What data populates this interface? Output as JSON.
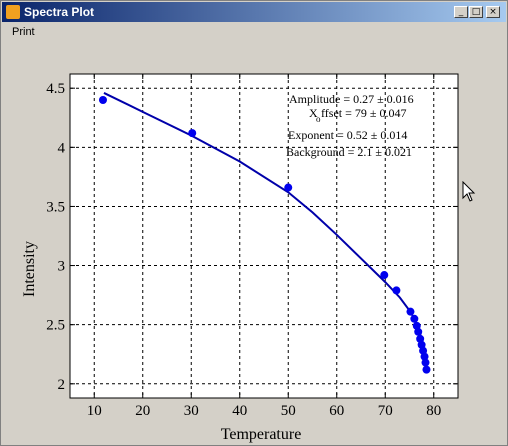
{
  "window": {
    "title": "Spectra Plot",
    "minimize_glyph": "_",
    "maximize_glyph": "□",
    "close_glyph": "×"
  },
  "menu": {
    "items": [
      {
        "label": "Print"
      }
    ]
  },
  "chart_data": {
    "type": "scatter",
    "xlabel": "Temperature",
    "ylabel": "Intensity",
    "xlim": [
      5,
      85
    ],
    "ylim": [
      1.88,
      4.62
    ],
    "xticks": [
      10,
      20,
      30,
      40,
      50,
      60,
      70,
      80
    ],
    "yticks": [
      2,
      2.5,
      3,
      3.5,
      4,
      4.5
    ],
    "xtick_labels": [
      "10",
      "20",
      "30",
      "40",
      "50",
      "60",
      "70",
      "80"
    ],
    "ytick_labels": [
      "2",
      "2.5",
      "3",
      "3.5",
      "4",
      "4.5"
    ],
    "grid": true,
    "series": [
      {
        "kind": "points",
        "color": "#0000ee",
        "x": [
          11.8,
          30.2,
          50,
          69.8,
          72.3,
          75.2,
          76,
          76.5,
          76.8,
          77.2,
          77.5,
          77.8,
          78.1,
          78.3,
          78.5
        ],
        "y": [
          4.4,
          4.12,
          3.66,
          2.92,
          2.79,
          2.61,
          2.55,
          2.49,
          2.44,
          2.38,
          2.33,
          2.28,
          2.23,
          2.18,
          2.12
        ]
      },
      {
        "kind": "fit-line",
        "color": "#0000aa",
        "x": [
          12,
          20,
          30,
          40,
          50,
          55,
          60,
          65,
          70,
          73,
          75,
          76,
          77,
          77.5,
          78,
          78.5
        ],
        "y": [
          4.46,
          4.3,
          4.1,
          3.88,
          3.62,
          3.45,
          3.26,
          3.06,
          2.86,
          2.73,
          2.62,
          2.55,
          2.45,
          2.38,
          2.28,
          2.13
        ]
      }
    ],
    "annotations": [
      {
        "text": "Amplitude  = 0.27 ± 0.016"
      },
      {
        "text": "X"
      },
      {
        "text": "o"
      },
      {
        "text": "ffset   = 79   ± 0.047"
      },
      {
        "text": "Exponent   = 0.52 ± 0.014"
      },
      {
        "text": "Background = 2.1  ± 0.021"
      }
    ]
  }
}
